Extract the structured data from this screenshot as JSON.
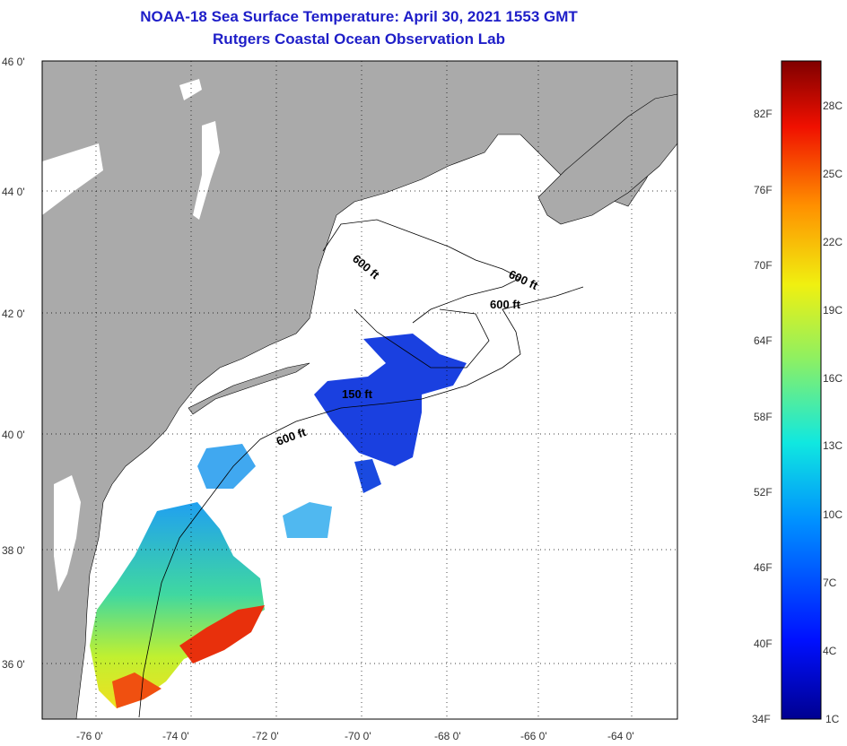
{
  "title": "NOAA-18 Sea Surface Temperature:  April 30, 2021 1553 GMT",
  "subtitle": "Rutgers Coastal Ocean Observation Lab",
  "axes": {
    "lat_labels": [
      "46 0'",
      "44 0'",
      "42 0'",
      "40 0'",
      "38 0'",
      "36 0'"
    ],
    "lon_labels": [
      "-76 0'",
      "-74 0'",
      "-72 0'",
      "-70 0'",
      "-68 0'",
      "-66 0'",
      "-64 0'"
    ]
  },
  "contour_labels": [
    "600 ft",
    "600 ft",
    "600 ft",
    "150 ft",
    "600 ft"
  ],
  "colorbar": {
    "fahrenheit": [
      "82F",
      "76F",
      "70F",
      "64F",
      "58F",
      "52F",
      "46F",
      "40F",
      "34F"
    ],
    "celsius": [
      "28C",
      "25C",
      "22C",
      "19C",
      "16C",
      "13C",
      "10C",
      "7C",
      "4C",
      "1C"
    ]
  },
  "colors": {
    "land": "#aaaaaa",
    "title": "#1e1ec8",
    "cold": "#1030d0",
    "warm": "#e03010"
  }
}
